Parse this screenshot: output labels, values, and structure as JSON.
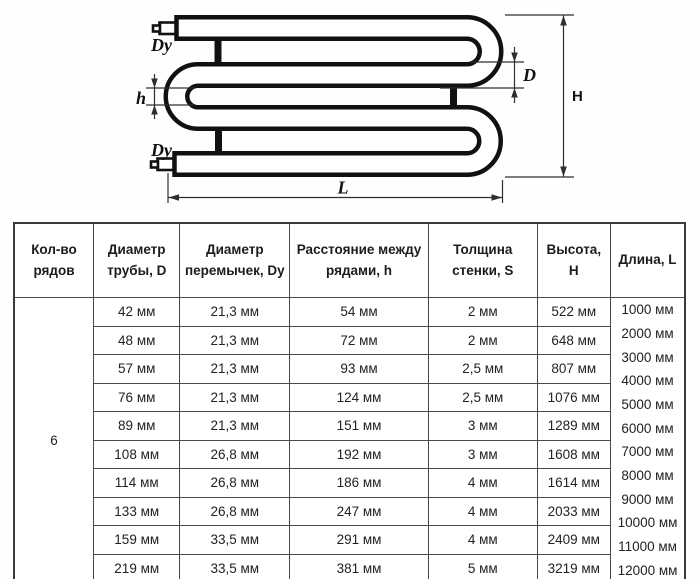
{
  "diagram": {
    "labels": {
      "jumper_top": "Dy",
      "jumper_bottom": "Dy",
      "row_gap": "h",
      "pipe_diameter": "D",
      "height": "Н",
      "length": "L"
    }
  },
  "table": {
    "headers": [
      "Кол-во рядов",
      "Диаметр трубы, D",
      "Диаметр перемычек, Dy",
      "Расстояние между рядами, h",
      "Толщина стенки, S",
      "Высота, Н",
      "Длина, L"
    ],
    "rows_count": "6",
    "rows": [
      [
        "42 мм",
        "21,3 мм",
        "54 мм",
        "2 мм",
        "522 мм"
      ],
      [
        "48 мм",
        "21,3 мм",
        "72 мм",
        "2 мм",
        "648 мм"
      ],
      [
        "57 мм",
        "21,3 мм",
        "93 мм",
        "2,5 мм",
        "807 мм"
      ],
      [
        "76 мм",
        "21,3 мм",
        "124 мм",
        "2,5 мм",
        "1076 мм"
      ],
      [
        "89 мм",
        "21,3 мм",
        "151 мм",
        "3 мм",
        "1289 мм"
      ],
      [
        "108 мм",
        "26,8 мм",
        "192 мм",
        "3 мм",
        "1608 мм"
      ],
      [
        "114 мм",
        "26,8 мм",
        "186 мм",
        "4 мм",
        "1614 мм"
      ],
      [
        "133 мм",
        "26,8 мм",
        "247 мм",
        "4 мм",
        "2033 мм"
      ],
      [
        "159 мм",
        "33,5 мм",
        "291 мм",
        "4 мм",
        "2409 мм"
      ],
      [
        "219 мм",
        "33,5 мм",
        "381 мм",
        "5 мм",
        "3219 мм"
      ]
    ],
    "lengths": [
      "1000 мм",
      "2000 мм",
      "3000 мм",
      "4000 мм",
      "5000 мм",
      "6000 мм",
      "7000 мм",
      "8000 мм",
      "9000 мм",
      "10000 мм",
      "11000 мм",
      "12000 мм"
    ]
  }
}
